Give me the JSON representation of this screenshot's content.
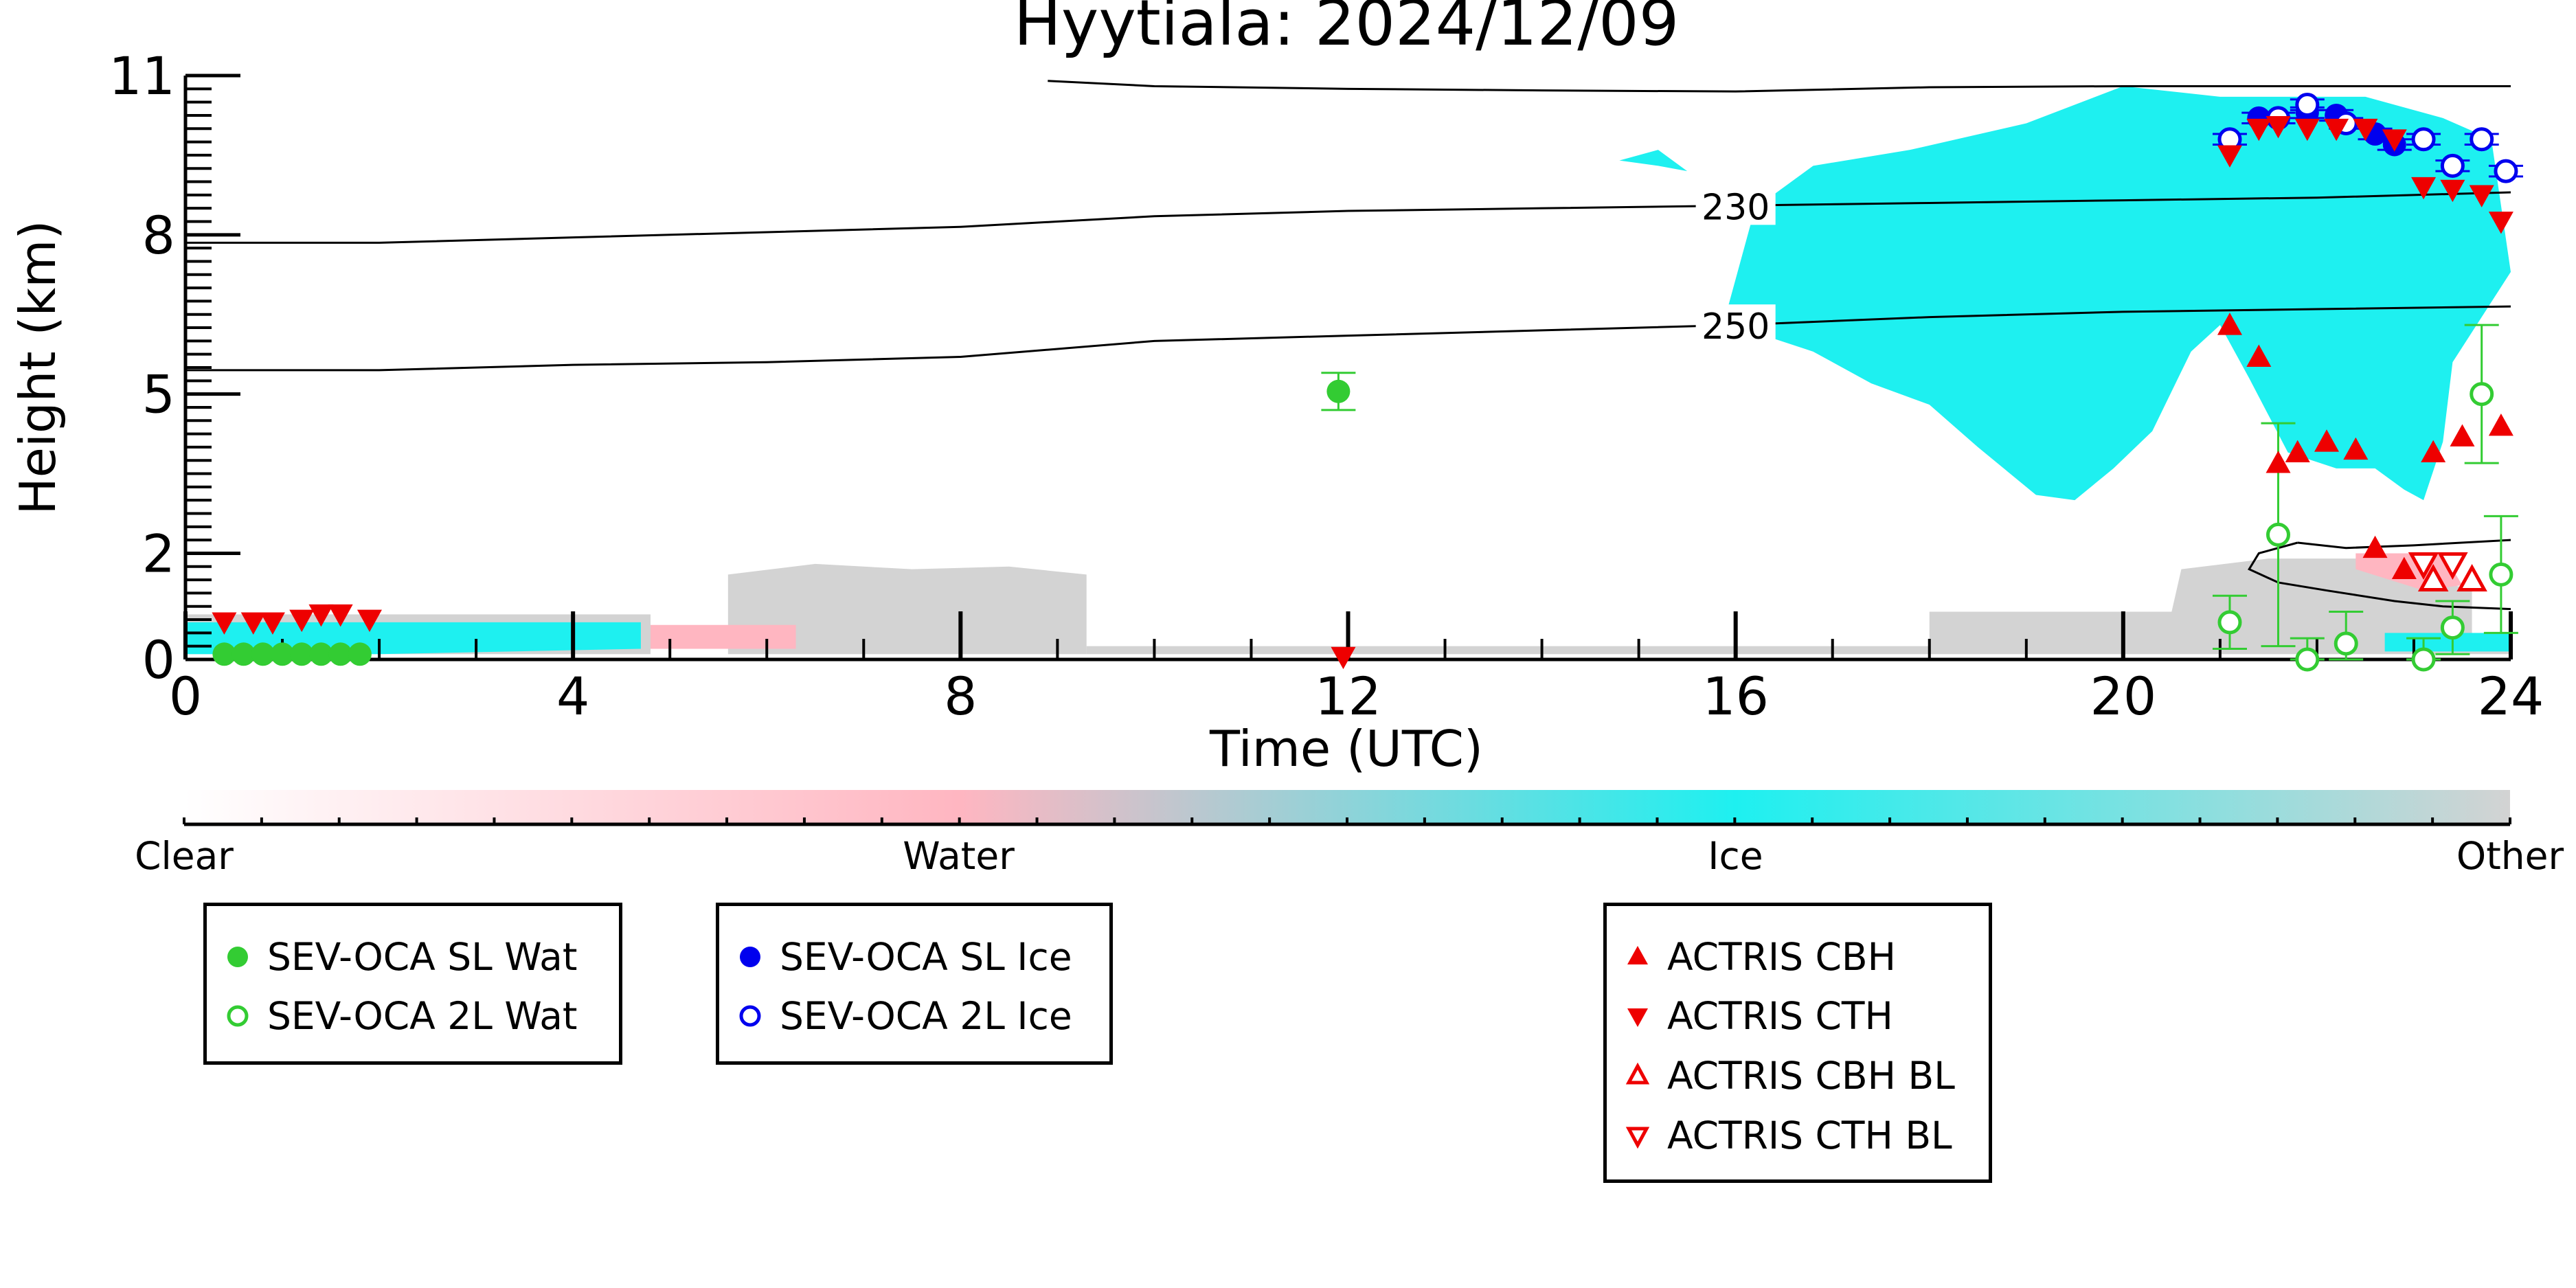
{
  "chart_data": {
    "type": "heatmap",
    "title": "Hyytiala: 2024/12/09",
    "xlabel": "Time (UTC)",
    "ylabel": "Height (km)",
    "xlim": [
      0,
      24
    ],
    "ylim": [
      0,
      11
    ],
    "x_ticks": [
      0,
      4,
      8,
      12,
      16,
      20,
      24
    ],
    "y_ticks": [
      0,
      2,
      5,
      8,
      11
    ],
    "colorbar": {
      "labels": [
        {
          "label": "Clear",
          "value": 0
        },
        {
          "label": "Water",
          "value": 0.333
        },
        {
          "label": "Ice",
          "value": 0.667
        },
        {
          "label": "Other",
          "value": 1
        }
      ],
      "colors": {
        "clear": "#ffffff",
        "water": "#ffb6c1",
        "ice": "#1ef0f0",
        "other": "#d3d3d3"
      }
    },
    "category_regions": [
      {
        "category": "other",
        "polygon": [
          [
            5.6,
            0.1
          ],
          [
            5.6,
            1.6
          ],
          [
            6.5,
            1.8
          ],
          [
            7.5,
            1.7
          ],
          [
            8.5,
            1.75
          ],
          [
            9.3,
            1.6
          ],
          [
            9.3,
            0.1
          ]
        ]
      },
      {
        "category": "other",
        "polygon": [
          [
            0,
            0.1
          ],
          [
            0,
            0.85
          ],
          [
            4.8,
            0.85
          ],
          [
            4.8,
            0.1
          ]
        ]
      },
      {
        "category": "other",
        "polygon": [
          [
            9.3,
            0.1
          ],
          [
            9.3,
            0.25
          ],
          [
            24,
            0.25
          ],
          [
            24,
            0.1
          ]
        ]
      },
      {
        "category": "other",
        "polygon": [
          [
            18,
            0.2
          ],
          [
            18,
            0.9
          ],
          [
            20.5,
            0.9
          ],
          [
            20.6,
            1.7
          ],
          [
            21.5,
            1.9
          ],
          [
            22.5,
            1.9
          ],
          [
            23.6,
            1.3
          ],
          [
            23.6,
            0.2
          ]
        ]
      },
      {
        "category": "ice",
        "polygon": [
          [
            0,
            0.1
          ],
          [
            0,
            0.7
          ],
          [
            4.7,
            0.7
          ],
          [
            4.7,
            0.2
          ],
          [
            2,
            0.1
          ]
        ]
      },
      {
        "category": "water",
        "polygon": [
          [
            4.8,
            0.2
          ],
          [
            4.8,
            0.65
          ],
          [
            6.3,
            0.65
          ],
          [
            6.3,
            0.2
          ]
        ]
      },
      {
        "category": "ice",
        "polygon": [
          [
            15.9,
            6.5
          ],
          [
            16.2,
            8.5
          ],
          [
            16.8,
            9.3
          ],
          [
            17.8,
            9.6
          ],
          [
            19,
            10.1
          ],
          [
            20,
            10.8
          ],
          [
            21,
            10.6
          ],
          [
            22.5,
            10.6
          ],
          [
            23.3,
            10.2
          ],
          [
            23.8,
            9.8
          ],
          [
            24,
            7.3
          ],
          [
            23.4,
            5.6
          ],
          [
            23.3,
            4.1
          ],
          [
            23.1,
            3.0
          ],
          [
            22.9,
            3.2
          ],
          [
            22.6,
            3.6
          ],
          [
            22.2,
            3.6
          ],
          [
            21.7,
            3.9
          ],
          [
            21.3,
            5.3
          ],
          [
            21,
            6.3
          ],
          [
            20.7,
            5.8
          ],
          [
            20.3,
            4.3
          ],
          [
            19.9,
            3.6
          ],
          [
            19.5,
            3.0
          ],
          [
            19.1,
            3.1
          ],
          [
            18.5,
            4.0
          ],
          [
            18,
            4.8
          ],
          [
            17.4,
            5.2
          ],
          [
            16.8,
            5.8
          ],
          [
            16.3,
            6.1
          ]
        ]
      },
      {
        "category": "ice",
        "polygon": [
          [
            14.8,
            9.4
          ],
          [
            15.2,
            9.3
          ],
          [
            15.5,
            9.2
          ],
          [
            15.2,
            9.6
          ]
        ]
      },
      {
        "category": "water",
        "polygon": [
          [
            22.4,
            1.7
          ],
          [
            22.4,
            2.0
          ],
          [
            23.3,
            2.0
          ],
          [
            23.5,
            1.4
          ],
          [
            23.1,
            1.3
          ]
        ]
      },
      {
        "category": "ice",
        "polygon": [
          [
            22.7,
            0.15
          ],
          [
            22.7,
            0.5
          ],
          [
            24,
            0.5
          ],
          [
            24,
            0.15
          ]
        ]
      }
    ],
    "contours": [
      {
        "label": "230",
        "points": [
          [
            0,
            7.85
          ],
          [
            2,
            7.85
          ],
          [
            4,
            7.95
          ],
          [
            6,
            8.05
          ],
          [
            8,
            8.15
          ],
          [
            9,
            8.25
          ],
          [
            10,
            8.35
          ],
          [
            12,
            8.45
          ],
          [
            14,
            8.5
          ],
          [
            16,
            8.55
          ],
          [
            18,
            8.6
          ],
          [
            20,
            8.65
          ],
          [
            22,
            8.7
          ],
          [
            24,
            8.8
          ]
        ]
      },
      {
        "label": "250",
        "points": [
          [
            0,
            5.45
          ],
          [
            2,
            5.45
          ],
          [
            4,
            5.55
          ],
          [
            6,
            5.6
          ],
          [
            8,
            5.7
          ],
          [
            9,
            5.85
          ],
          [
            10,
            6.0
          ],
          [
            12,
            6.1
          ],
          [
            14,
            6.2
          ],
          [
            16,
            6.3
          ],
          [
            18,
            6.45
          ],
          [
            20,
            6.55
          ],
          [
            22,
            6.6
          ],
          [
            24,
            6.65
          ]
        ]
      },
      {
        "label": "",
        "points": [
          [
            8.9,
            10.9
          ],
          [
            10,
            10.8
          ],
          [
            12,
            10.75
          ],
          [
            14,
            10.72
          ],
          [
            16,
            10.7
          ],
          [
            18,
            10.78
          ],
          [
            20,
            10.8
          ],
          [
            22,
            10.8
          ],
          [
            24,
            10.8
          ]
        ]
      },
      {
        "label": "",
        "points": [
          [
            21.8,
            2.2
          ],
          [
            21.4,
            2.0
          ],
          [
            21.3,
            1.7
          ],
          [
            21.6,
            1.45
          ],
          [
            22.1,
            1.3
          ],
          [
            22.8,
            1.1
          ],
          [
            23.3,
            1.0
          ],
          [
            24,
            0.95
          ]
        ]
      },
      {
        "label": "",
        "points": [
          [
            21.8,
            2.2
          ],
          [
            22.3,
            2.1
          ],
          [
            23,
            2.15
          ],
          [
            24,
            2.25
          ]
        ]
      }
    ],
    "series": [
      {
        "name": "SEV-OCA SL Wat",
        "marker": "circle-filled",
        "color": "#33cc33",
        "points": [
          [
            0.4,
            0.1
          ],
          [
            0.6,
            0.1
          ],
          [
            0.8,
            0.1
          ],
          [
            1.0,
            0.1
          ],
          [
            1.2,
            0.1
          ],
          [
            1.4,
            0.1
          ],
          [
            1.6,
            0.1
          ],
          [
            1.8,
            0.1
          ],
          [
            11.9,
            5.05
          ]
        ],
        "err": [
          0,
          0,
          0,
          0,
          0,
          0,
          0,
          0,
          0.35
        ]
      },
      {
        "name": "SEV-OCA 2L Wat",
        "marker": "circle-open",
        "color": "#33cc33",
        "points": [
          [
            21.1,
            0.7
          ],
          [
            21.6,
            2.35
          ],
          [
            21.9,
            0
          ],
          [
            22.3,
            0.3
          ],
          [
            23.1,
            0
          ],
          [
            23.4,
            0.6
          ],
          [
            23.7,
            5.0
          ],
          [
            23.9,
            1.6
          ]
        ],
        "err": [
          0.5,
          2.1,
          0.4,
          0.6,
          0.4,
          0.5,
          1.3,
          1.1
        ]
      },
      {
        "name": "SEV-OCA SL Ice",
        "marker": "circle-filled",
        "color": "#0000ee",
        "points": [
          [
            21.4,
            10.2
          ],
          [
            21.9,
            10.3
          ],
          [
            22.2,
            10.25
          ],
          [
            22.6,
            9.9
          ],
          [
            22.8,
            9.7
          ]
        ],
        "err": [
          0.1,
          0.1,
          0.1,
          0.1,
          0.1
        ]
      },
      {
        "name": "SEV-OCA 2L Ice",
        "marker": "circle-open",
        "color": "#0000ee",
        "points": [
          [
            21.1,
            9.8
          ],
          [
            21.6,
            10.2
          ],
          [
            21.9,
            10.45
          ],
          [
            22.3,
            10.1
          ],
          [
            23.1,
            9.8
          ],
          [
            23.4,
            9.3
          ],
          [
            23.7,
            9.8
          ],
          [
            23.95,
            9.2
          ]
        ],
        "err": [
          0.1,
          0.1,
          0.1,
          0.1,
          0.1,
          0.1,
          0.1,
          0.1
        ]
      },
      {
        "name": "ACTRIS CBH",
        "marker": "triangle-up-filled",
        "color": "#ee0000",
        "points": [
          [
            21.1,
            6.3
          ],
          [
            21.4,
            5.7
          ],
          [
            21.6,
            3.7
          ],
          [
            21.8,
            3.9
          ],
          [
            22.1,
            4.1
          ],
          [
            22.4,
            3.95
          ],
          [
            22.6,
            2.1
          ],
          [
            22.9,
            1.7
          ],
          [
            23.2,
            3.9
          ],
          [
            23.5,
            4.2
          ],
          [
            23.9,
            4.4
          ]
        ]
      },
      {
        "name": "ACTRIS CTH",
        "marker": "triangle-down-filled",
        "color": "#ee0000",
        "points": [
          [
            0.4,
            0.7
          ],
          [
            0.7,
            0.7
          ],
          [
            0.9,
            0.7
          ],
          [
            1.2,
            0.75
          ],
          [
            1.4,
            0.85
          ],
          [
            1.6,
            0.85
          ],
          [
            1.9,
            0.75
          ],
          [
            11.95,
            0.05
          ],
          [
            21.1,
            9.5
          ],
          [
            21.4,
            10.0
          ],
          [
            21.6,
            10.05
          ],
          [
            21.9,
            10.0
          ],
          [
            22.2,
            10.0
          ],
          [
            22.5,
            10.0
          ],
          [
            22.8,
            9.8
          ],
          [
            23.1,
            8.9
          ],
          [
            23.4,
            8.85
          ],
          [
            23.7,
            8.75
          ],
          [
            23.9,
            8.25
          ]
        ]
      },
      {
        "name": "ACTRIS CBH BL",
        "marker": "triangle-up-open",
        "color": "#ee0000",
        "points": [
          [
            23.2,
            1.5
          ],
          [
            23.6,
            1.5
          ]
        ]
      },
      {
        "name": "ACTRIS CTH BL",
        "marker": "triangle-down-open",
        "color": "#ee0000",
        "points": [
          [
            23.1,
            1.8
          ],
          [
            23.4,
            1.8
          ]
        ]
      }
    ]
  }
}
